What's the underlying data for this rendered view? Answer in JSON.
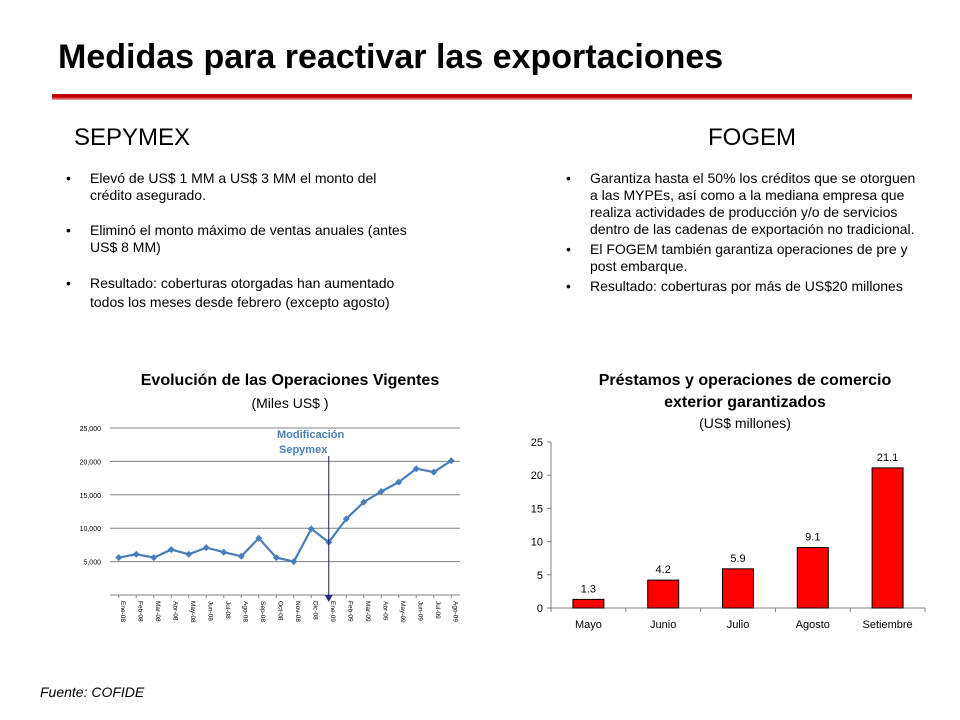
{
  "title": "Medidas para reactivar las exportaciones",
  "sepymex": {
    "heading": "SEPYMEX",
    "bullets": [
      "Elevó de US$ 1 MM a US$ 3 MM el monto del crédito asegurado.",
      "Eliminó el monto máximo de ventas anuales (antes US$ 8 MM)",
      "Resultado: coberturas otorgadas han aumentado todos los meses desde febrero (excepto agosto)"
    ]
  },
  "fogem": {
    "heading": "FOGEM",
    "bullets": [
      "Garantiza hasta el 50% los créditos que se otorguen a las MYPEs, así como a la mediana empresa que realiza actividades de producción y/o de servicios dentro de las cadenas de exportación no tradicional.",
      "El FOGEM también garantiza operaciones de pre y post embarque.",
      "Resultado: coberturas por más de US$20 millones"
    ]
  },
  "source": "Fuente: COFIDE",
  "colors": {
    "accent_red": "#c00000",
    "line_blue": "#4a7ebb",
    "bar_red": "#ff0000",
    "annotation_blue": "#4a7ebb"
  },
  "chart_data": [
    {
      "type": "line",
      "title": "Evolución de las Operaciones Vigentes",
      "subtitle": "(Miles US$ )",
      "x": [
        "Ene-08",
        "Feb-08",
        "Mar-08",
        "Abr-08",
        "May-08",
        "Jun-08",
        "Jul-08",
        "Ago-08",
        "Sep-08",
        "Oct-08",
        "Nov-08",
        "Dic-08",
        "Ene-09",
        "Feb-09",
        "Mar-09",
        "Abr-09",
        "May-09",
        "Jun-09",
        "Jul-09",
        "Ago-09"
      ],
      "series": [
        {
          "values": [
            5600,
            6100,
            5600,
            6800,
            6100,
            7100,
            6400,
            5800,
            8500,
            5600,
            5000,
            9900,
            7900,
            11400,
            13900,
            15500,
            16900,
            18900,
            18400,
            20100
          ]
        }
      ],
      "yticks": [
        "5,000",
        "10,000",
        "15,000",
        "20,000",
        "25,000"
      ],
      "ylim": [
        0,
        25000
      ],
      "grid": true,
      "annotation": {
        "label_line1": "Modificación",
        "label_line2": "Sepymex",
        "at": "Ene-09"
      }
    },
    {
      "type": "bar",
      "title_line1": "Préstamos y operaciones de comercio",
      "title_line2": "exterior garantizados",
      "subtitle": "(US$ millones)",
      "categories": [
        "Mayo",
        "Junio",
        "Julio",
        "Agosto",
        "Setiembre"
      ],
      "values": [
        1.3,
        4.2,
        5.9,
        9.1,
        21.1
      ],
      "value_labels": [
        "1.3",
        "4.2",
        "5.9",
        "9.1",
        "21.1"
      ],
      "yticks": [
        "0",
        "5",
        "10",
        "15",
        "20",
        "25"
      ],
      "ylim": [
        0,
        25
      ],
      "grid": false
    }
  ]
}
